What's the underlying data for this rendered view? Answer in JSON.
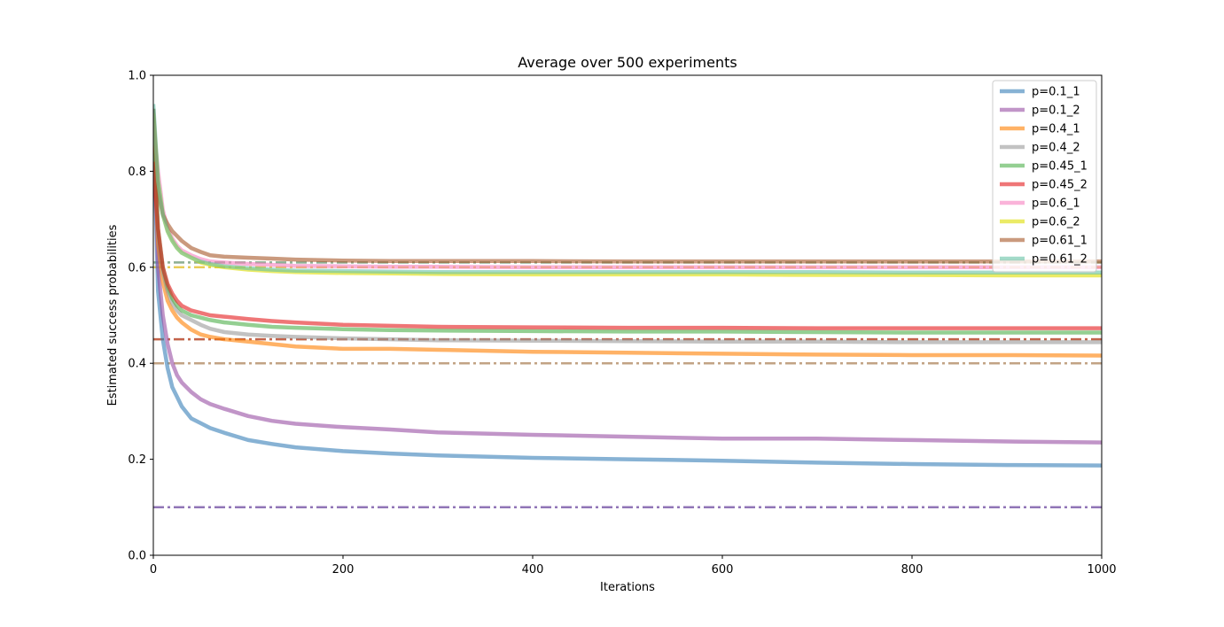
{
  "chart_data": {
    "type": "line",
    "title": "Average over 500 experiments",
    "xlabel": "Iterations",
    "ylabel": "Estimated success probabilities",
    "xlim": [
      0,
      1000
    ],
    "ylim": [
      0.0,
      1.0
    ],
    "xticks": [
      0,
      200,
      400,
      600,
      800,
      1000
    ],
    "xtick_labels": [
      "0",
      "200",
      "400",
      "600",
      "800",
      "1000"
    ],
    "yticks": [
      0.0,
      0.2,
      0.4,
      0.6,
      0.8,
      1.0
    ],
    "ytick_labels": [
      "0.0",
      "0.2",
      "0.4",
      "0.6",
      "0.8",
      "1.0"
    ],
    "grid": false,
    "legend_position": "top-right",
    "series": [
      {
        "name": "p=0.1_1",
        "color": "#377eb8",
        "x": [
          0,
          5,
          10,
          15,
          20,
          25,
          30,
          40,
          50,
          60,
          75,
          100,
          125,
          150,
          200,
          250,
          300,
          400,
          500,
          600,
          700,
          800,
          900,
          1000
        ],
        "y": [
          0.92,
          0.55,
          0.45,
          0.39,
          0.35,
          0.33,
          0.31,
          0.285,
          0.275,
          0.265,
          0.255,
          0.24,
          0.232,
          0.225,
          0.217,
          0.212,
          0.208,
          0.203,
          0.2,
          0.197,
          0.193,
          0.19,
          0.188,
          0.187
        ]
      },
      {
        "name": "p=0.1_2",
        "color": "#984ea3",
        "x": [
          0,
          5,
          10,
          15,
          20,
          25,
          30,
          40,
          50,
          60,
          75,
          100,
          125,
          150,
          200,
          250,
          300,
          400,
          500,
          600,
          700,
          800,
          900,
          1000
        ],
        "y": [
          0.93,
          0.6,
          0.5,
          0.44,
          0.4,
          0.375,
          0.36,
          0.34,
          0.325,
          0.315,
          0.305,
          0.29,
          0.28,
          0.274,
          0.267,
          0.262,
          0.256,
          0.251,
          0.247,
          0.243,
          0.243,
          0.24,
          0.237,
          0.235
        ]
      },
      {
        "name": "p=0.4_1",
        "color": "#ff7f00",
        "x": [
          0,
          5,
          10,
          15,
          20,
          25,
          30,
          40,
          50,
          60,
          75,
          100,
          125,
          150,
          200,
          250,
          300,
          400,
          500,
          600,
          700,
          800,
          900,
          1000
        ],
        "y": [
          0.9,
          0.65,
          0.57,
          0.53,
          0.51,
          0.495,
          0.485,
          0.47,
          0.46,
          0.455,
          0.45,
          0.445,
          0.44,
          0.435,
          0.43,
          0.43,
          0.428,
          0.424,
          0.422,
          0.42,
          0.418,
          0.417,
          0.417,
          0.416
        ]
      },
      {
        "name": "p=0.4_2",
        "color": "#999999",
        "x": [
          0,
          5,
          10,
          15,
          20,
          25,
          30,
          40,
          50,
          60,
          75,
          100,
          125,
          150,
          200,
          250,
          300,
          400,
          500,
          600,
          700,
          800,
          900,
          1000
        ],
        "y": [
          0.9,
          0.67,
          0.59,
          0.55,
          0.525,
          0.51,
          0.5,
          0.49,
          0.48,
          0.472,
          0.465,
          0.46,
          0.457,
          0.455,
          0.452,
          0.45,
          0.448,
          0.447,
          0.446,
          0.445,
          0.445,
          0.444,
          0.444,
          0.444
        ]
      },
      {
        "name": "p=0.45_1",
        "color": "#4daf4a",
        "x": [
          0,
          5,
          10,
          15,
          20,
          25,
          30,
          40,
          50,
          60,
          75,
          100,
          125,
          150,
          200,
          250,
          300,
          400,
          500,
          600,
          700,
          800,
          900,
          1000
        ],
        "y": [
          0.93,
          0.68,
          0.6,
          0.56,
          0.535,
          0.52,
          0.51,
          0.5,
          0.495,
          0.49,
          0.485,
          0.48,
          0.476,
          0.474,
          0.471,
          0.469,
          0.468,
          0.467,
          0.466,
          0.466,
          0.465,
          0.464,
          0.464,
          0.464
        ]
      },
      {
        "name": "p=0.45_2",
        "color": "#e41a1c",
        "x": [
          0,
          5,
          10,
          15,
          20,
          25,
          30,
          40,
          50,
          60,
          75,
          100,
          125,
          150,
          200,
          250,
          300,
          400,
          500,
          600,
          700,
          800,
          900,
          1000
        ],
        "y": [
          0.82,
          0.68,
          0.6,
          0.565,
          0.545,
          0.53,
          0.52,
          0.51,
          0.505,
          0.5,
          0.497,
          0.492,
          0.488,
          0.485,
          0.48,
          0.478,
          0.476,
          0.475,
          0.474,
          0.474,
          0.473,
          0.473,
          0.473,
          0.473
        ]
      },
      {
        "name": "p=0.6_1",
        "color": "#f781bf",
        "x": [
          0,
          5,
          10,
          15,
          20,
          25,
          30,
          40,
          50,
          60,
          75,
          100,
          125,
          150,
          200,
          250,
          300,
          400,
          500,
          600,
          700,
          800,
          900,
          1000
        ],
        "y": [
          0.9,
          0.8,
          0.72,
          0.68,
          0.66,
          0.645,
          0.635,
          0.625,
          0.617,
          0.612,
          0.61,
          0.607,
          0.605,
          0.603,
          0.602,
          0.601,
          0.601,
          0.6,
          0.6,
          0.6,
          0.6,
          0.6,
          0.6,
          0.6
        ]
      },
      {
        "name": "p=0.6_2",
        "color": "#dede00",
        "x": [
          0,
          5,
          10,
          15,
          20,
          25,
          30,
          40,
          50,
          60,
          75,
          100,
          125,
          150,
          200,
          250,
          300,
          400,
          500,
          600,
          700,
          800,
          900,
          1000
        ],
        "y": [
          0.92,
          0.78,
          0.71,
          0.675,
          0.655,
          0.64,
          0.63,
          0.62,
          0.61,
          0.605,
          0.6,
          0.595,
          0.592,
          0.59,
          0.588,
          0.587,
          0.586,
          0.585,
          0.585,
          0.585,
          0.584,
          0.584,
          0.583,
          0.583
        ]
      },
      {
        "name": "p=0.61_1",
        "color": "#a65628",
        "x": [
          0,
          5,
          10,
          15,
          20,
          25,
          30,
          40,
          50,
          60,
          75,
          100,
          125,
          150,
          200,
          250,
          300,
          400,
          500,
          600,
          700,
          800,
          900,
          1000
        ],
        "y": [
          0.93,
          0.76,
          0.71,
          0.69,
          0.675,
          0.665,
          0.655,
          0.64,
          0.632,
          0.625,
          0.622,
          0.62,
          0.618,
          0.616,
          0.614,
          0.613,
          0.613,
          0.613,
          0.612,
          0.612,
          0.612,
          0.612,
          0.612,
          0.612
        ]
      },
      {
        "name": "p=0.61_2",
        "color": "#66c2a5",
        "x": [
          0,
          5,
          10,
          15,
          20,
          25,
          30,
          40,
          50,
          60,
          75,
          100,
          125,
          150,
          200,
          250,
          300,
          400,
          500,
          600,
          700,
          800,
          900,
          1000
        ],
        "y": [
          0.94,
          0.78,
          0.71,
          0.675,
          0.655,
          0.64,
          0.63,
          0.62,
          0.612,
          0.607,
          0.602,
          0.598,
          0.595,
          0.593,
          0.592,
          0.591,
          0.59,
          0.59,
          0.59,
          0.59,
          0.59,
          0.589,
          0.589,
          0.589
        ]
      }
    ],
    "reference_lines": [
      {
        "series": "p=0.1_1",
        "y": 0.1,
        "color": "#377eb8",
        "style": "dash-dot"
      },
      {
        "series": "p=0.1_2",
        "y": 0.1,
        "color": "#984ea3",
        "style": "dash-dot"
      },
      {
        "series": "p=0.4_1",
        "y": 0.4,
        "color": "#ff7f00",
        "style": "dash-dot"
      },
      {
        "series": "p=0.4_2",
        "y": 0.4,
        "color": "#999999",
        "style": "dash-dot"
      },
      {
        "series": "p=0.45_1",
        "y": 0.45,
        "color": "#4daf4a",
        "style": "dash-dot"
      },
      {
        "series": "p=0.45_2",
        "y": 0.45,
        "color": "#e41a1c",
        "style": "dash-dot"
      },
      {
        "series": "p=0.6_1",
        "y": 0.6,
        "color": "#f781bf",
        "style": "dash-dot"
      },
      {
        "series": "p=0.6_2",
        "y": 0.6,
        "color": "#dede00",
        "style": "dash-dot"
      },
      {
        "series": "p=0.61_1",
        "y": 0.61,
        "color": "#a65628",
        "style": "dash-dot"
      },
      {
        "series": "p=0.61_2",
        "y": 0.61,
        "color": "#66c2a5",
        "style": "dash-dot"
      }
    ]
  }
}
